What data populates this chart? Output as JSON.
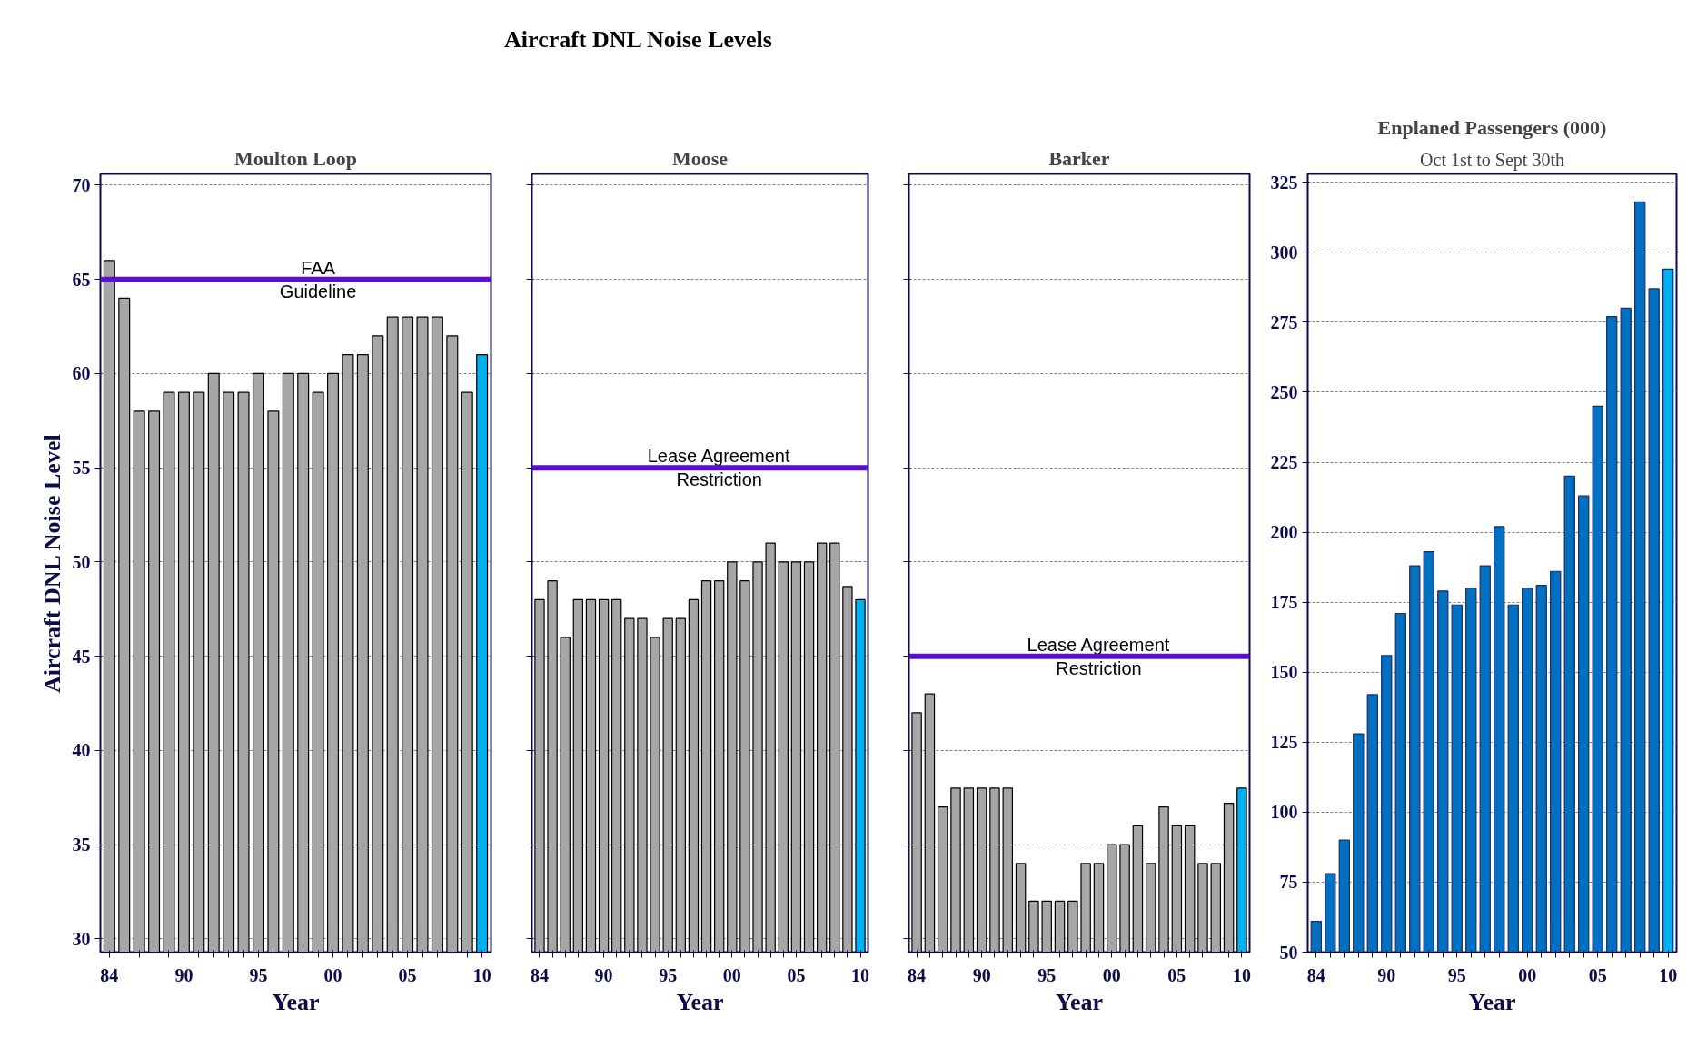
{
  "chart_data": [
    {
      "type": "bar",
      "title": "Moulton Loop",
      "xlabel": "Year",
      "ylabel": "Aircraft DNL Noise Level",
      "annotations": [
        "Aircraft DNL Noise Levels"
      ],
      "categories": [
        "84",
        null,
        null,
        null,
        null,
        "90",
        null,
        null,
        null,
        null,
        "95",
        null,
        null,
        null,
        null,
        "00",
        null,
        null,
        null,
        null,
        "05",
        null,
        null,
        null,
        null,
        "10"
      ],
      "values": [
        66,
        64,
        58,
        58,
        59,
        59,
        59,
        60,
        59,
        59,
        60,
        58,
        60,
        60,
        59,
        60,
        61,
        61,
        62,
        63,
        63,
        63,
        63,
        62,
        59,
        61
      ],
      "colors": [
        "#a6a6a6",
        "#a6a6a6",
        "#a6a6a6",
        "#a6a6a6",
        "#a6a6a6",
        "#a6a6a6",
        "#a6a6a6",
        "#a6a6a6",
        "#a6a6a6",
        "#a6a6a6",
        "#a6a6a6",
        "#a6a6a6",
        "#a6a6a6",
        "#a6a6a6",
        "#a6a6a6",
        "#a6a6a6",
        "#a6a6a6",
        "#a6a6a6",
        "#a6a6a6",
        "#a6a6a6",
        "#a6a6a6",
        "#a6a6a6",
        "#a6a6a6",
        "#a6a6a6",
        "#a6a6a6",
        "#00b0f0"
      ],
      "ylim": [
        29.3,
        70.6
      ],
      "yticks": [
        30,
        35,
        40,
        45,
        50,
        55,
        60,
        65,
        70
      ],
      "grid": "y",
      "ref_lines": [
        {
          "axis": "y",
          "value": 65,
          "label": "FAA\nGuideline",
          "color": "#5b0fcc"
        }
      ]
    },
    {
      "type": "bar",
      "title": "Moose",
      "xlabel": "Year",
      "categories": [
        "84",
        null,
        null,
        null,
        null,
        "90",
        null,
        null,
        null,
        null,
        "95",
        null,
        null,
        null,
        null,
        "00",
        null,
        null,
        null,
        null,
        "05",
        null,
        null,
        null,
        null,
        "10"
      ],
      "values": [
        48,
        49,
        46,
        48,
        48,
        48,
        48,
        47,
        47,
        46,
        47,
        47,
        48,
        49,
        49,
        50,
        49,
        50,
        51,
        50,
        50,
        50,
        51,
        51,
        48.7,
        48
      ],
      "colors": [
        "#a6a6a6",
        "#a6a6a6",
        "#a6a6a6",
        "#a6a6a6",
        "#a6a6a6",
        "#a6a6a6",
        "#a6a6a6",
        "#a6a6a6",
        "#a6a6a6",
        "#a6a6a6",
        "#a6a6a6",
        "#a6a6a6",
        "#a6a6a6",
        "#a6a6a6",
        "#a6a6a6",
        "#a6a6a6",
        "#a6a6a6",
        "#a6a6a6",
        "#a6a6a6",
        "#a6a6a6",
        "#a6a6a6",
        "#a6a6a6",
        "#a6a6a6",
        "#a6a6a6",
        "#a6a6a6",
        "#00b0f0"
      ],
      "ylim": [
        29.3,
        70.6
      ],
      "yticks": [
        30,
        35,
        40,
        45,
        50,
        55,
        60,
        65,
        70
      ],
      "grid": "y",
      "tick_labels": "x",
      "ref_lines": [
        {
          "axis": "y",
          "value": 55,
          "label": "Lease Agreement\nRestriction",
          "color": "#5b0fcc"
        }
      ]
    },
    {
      "type": "bar",
      "title": "Barker",
      "xlabel": "Year",
      "categories": [
        "84",
        null,
        null,
        null,
        null,
        "90",
        null,
        null,
        null,
        null,
        "95",
        null,
        null,
        null,
        null,
        "00",
        null,
        null,
        null,
        null,
        "05",
        null,
        null,
        null,
        null,
        "10"
      ],
      "values": [
        42,
        43,
        37,
        38,
        38,
        38,
        38,
        38,
        34,
        32,
        32,
        32,
        32,
        34,
        34,
        35,
        35,
        36,
        34,
        37,
        36,
        36,
        34,
        34,
        37.2,
        38
      ],
      "colors": [
        "#a6a6a6",
        "#a6a6a6",
        "#a6a6a6",
        "#a6a6a6",
        "#a6a6a6",
        "#a6a6a6",
        "#a6a6a6",
        "#a6a6a6",
        "#a6a6a6",
        "#a6a6a6",
        "#a6a6a6",
        "#a6a6a6",
        "#a6a6a6",
        "#a6a6a6",
        "#a6a6a6",
        "#a6a6a6",
        "#a6a6a6",
        "#a6a6a6",
        "#a6a6a6",
        "#a6a6a6",
        "#a6a6a6",
        "#a6a6a6",
        "#a6a6a6",
        "#a6a6a6",
        "#a6a6a6",
        "#00b0f0"
      ],
      "ylim": [
        29.3,
        70.6
      ],
      "yticks": [
        30,
        35,
        40,
        45,
        50,
        55,
        60,
        65,
        70
      ],
      "grid": "y",
      "tick_labels": "x",
      "ref_lines": [
        {
          "axis": "y",
          "value": 45,
          "label": "Lease Agreement\nRestriction",
          "color": "#5b0fcc"
        }
      ]
    },
    {
      "type": "bar",
      "title": "Enplaned Passengers (000)",
      "subtitle": "Oct 1st to Sept 30th",
      "xlabel": "Year",
      "categories": [
        "84",
        null,
        null,
        null,
        null,
        "90",
        null,
        null,
        null,
        null,
        "95",
        null,
        null,
        null,
        null,
        "00",
        null,
        null,
        null,
        null,
        "05",
        null,
        null,
        null,
        null,
        "10"
      ],
      "values": [
        61,
        78,
        90,
        128,
        142,
        156,
        171,
        188,
        193,
        179,
        174,
        180,
        188,
        202,
        174,
        180,
        181,
        186,
        220,
        213,
        245,
        277,
        280,
        318,
        287,
        294
      ],
      "colors": [
        "#0070c0",
        "#0070c0",
        "#0070c0",
        "#0070c0",
        "#0070c0",
        "#0070c0",
        "#0070c0",
        "#0070c0",
        "#0070c0",
        "#0070c0",
        "#0070c0",
        "#0070c0",
        "#0070c0",
        "#0070c0",
        "#0070c0",
        "#0070c0",
        "#0070c0",
        "#0070c0",
        "#0070c0",
        "#0070c0",
        "#0070c0",
        "#0070c0",
        "#0070c0",
        "#0070c0",
        "#0070c0",
        "#00b0f0"
      ],
      "ylim": [
        50,
        328
      ],
      "yticks": [
        50,
        75,
        100,
        125,
        150,
        175,
        200,
        225,
        250,
        275,
        300,
        325
      ],
      "grid": "y"
    }
  ]
}
